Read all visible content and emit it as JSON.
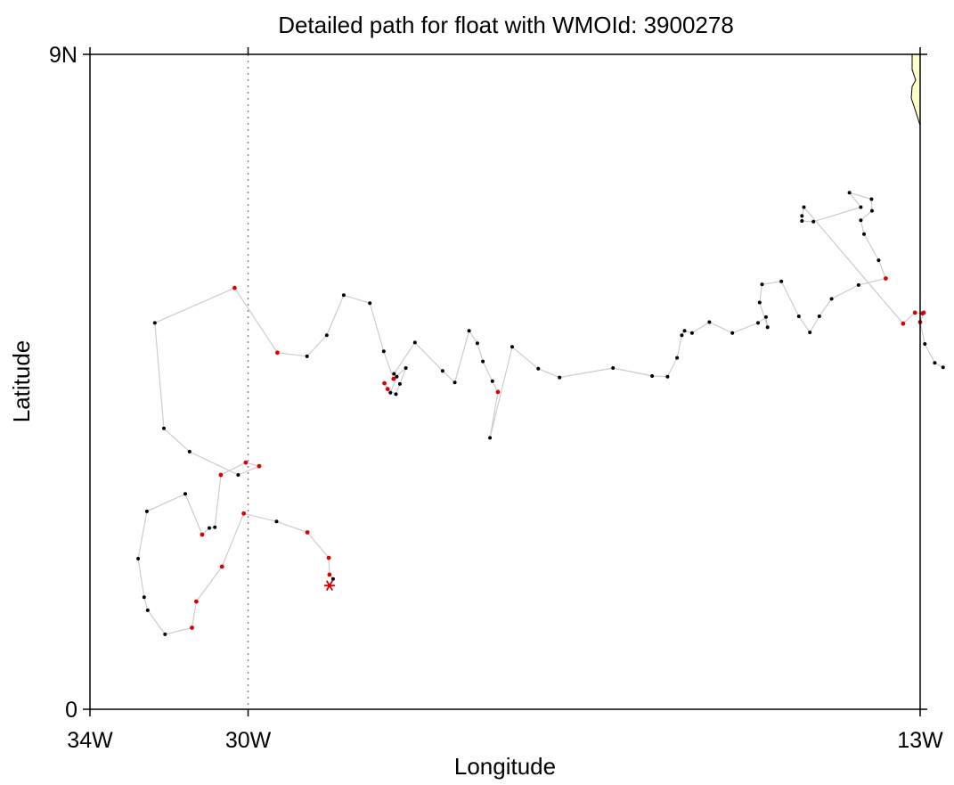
{
  "chart_data": {
    "type": "line",
    "title": "Detailed path for float with WMOId: 3900278",
    "xlabel": "Longitude",
    "ylabel": "Latitude",
    "xlim": [
      -34,
      -13
    ],
    "ylim": [
      0,
      9
    ],
    "x_ticks": [
      {
        "value": -34,
        "label": "34W"
      },
      {
        "value": -30,
        "label": "30W"
      },
      {
        "value": -13,
        "label": "13W"
      }
    ],
    "y_ticks": [
      {
        "value": 0,
        "label": "0"
      },
      {
        "value": 9,
        "label": "9N"
      }
    ],
    "reference_line": {
      "x": -30,
      "style": "dotted"
    },
    "start_marker": {
      "lon": -27.94,
      "lat": 1.7,
      "symbol": "asterisk"
    },
    "colors": {
      "track": "#cccccc",
      "point": "#000000",
      "highlight": "#dd0000",
      "land": "#ffffcc"
    },
    "series": [
      {
        "points": [
          [
            -27.94,
            1.7,
            0
          ],
          [
            -27.85,
            1.79,
            0
          ],
          [
            -27.94,
            1.85,
            1
          ],
          [
            -27.96,
            2.08,
            1
          ],
          [
            -28.5,
            2.43,
            1
          ],
          [
            -29.28,
            2.58,
            0
          ],
          [
            -30.11,
            2.69,
            1
          ],
          [
            -30.66,
            1.96,
            1
          ],
          [
            -31.31,
            1.48,
            1
          ],
          [
            -31.42,
            1.12,
            1
          ],
          [
            -32.1,
            1.03,
            0
          ],
          [
            -32.54,
            1.36,
            0
          ],
          [
            -32.63,
            1.54,
            0
          ],
          [
            -32.78,
            2.07,
            0
          ],
          [
            -32.56,
            2.72,
            0
          ],
          [
            -31.59,
            2.96,
            0
          ],
          [
            -31.16,
            2.4,
            1
          ],
          [
            -30.98,
            2.49,
            0
          ],
          [
            -30.84,
            2.5,
            0
          ],
          [
            -30.69,
            3.22,
            1
          ],
          [
            -30.06,
            3.39,
            1
          ],
          [
            -29.72,
            3.34,
            1
          ],
          [
            -30.25,
            3.22,
            0
          ],
          [
            -31.48,
            3.54,
            0
          ],
          [
            -32.13,
            3.86,
            0
          ],
          [
            -32.36,
            5.31,
            0
          ],
          [
            -30.34,
            5.79,
            1
          ],
          [
            -29.26,
            4.9,
            1
          ],
          [
            -28.51,
            4.85,
            0
          ],
          [
            -28.01,
            5.14,
            0
          ],
          [
            -27.58,
            5.69,
            0
          ],
          [
            -26.92,
            5.58,
            0
          ],
          [
            -26.57,
            4.92,
            0
          ],
          [
            -26.32,
            4.54,
            1
          ],
          [
            -26.01,
            4.69,
            0
          ],
          [
            -26.16,
            4.47,
            0
          ],
          [
            -26.26,
            4.33,
            0
          ],
          [
            -26.47,
            4.4,
            1
          ],
          [
            -26.55,
            4.48,
            1
          ],
          [
            -26.4,
            4.35,
            0
          ],
          [
            -26.24,
            4.57,
            0
          ],
          [
            -26.31,
            4.61,
            0
          ],
          [
            -25.78,
            5.04,
            0
          ],
          [
            -25.08,
            4.65,
            0
          ],
          [
            -24.77,
            4.49,
            0
          ],
          [
            -24.41,
            5.2,
            0
          ],
          [
            -24.2,
            5.03,
            0
          ],
          [
            -24.06,
            4.78,
            0
          ],
          [
            -23.82,
            4.51,
            0
          ],
          [
            -23.68,
            4.36,
            1
          ],
          [
            -23.88,
            3.73,
            0
          ],
          [
            -23.32,
            4.98,
            0
          ],
          [
            -22.66,
            4.68,
            0
          ],
          [
            -22.12,
            4.56,
            0
          ],
          [
            -20.77,
            4.69,
            0
          ],
          [
            -19.78,
            4.58,
            0
          ],
          [
            -19.39,
            4.57,
            0
          ],
          [
            -19.15,
            4.83,
            0
          ],
          [
            -19.03,
            5.14,
            0
          ],
          [
            -18.96,
            5.2,
            0
          ],
          [
            -18.77,
            5.17,
            0
          ],
          [
            -18.33,
            5.32,
            0
          ],
          [
            -17.75,
            5.17,
            0
          ],
          [
            -17.1,
            5.31,
            0
          ],
          [
            -16.9,
            5.39,
            0
          ],
          [
            -16.86,
            5.25,
            0
          ],
          [
            -17.06,
            5.59,
            0
          ],
          [
            -17.0,
            5.84,
            0
          ],
          [
            -16.51,
            5.88,
            0
          ],
          [
            -16.07,
            5.4,
            0
          ],
          [
            -15.79,
            5.18,
            0
          ],
          [
            -15.55,
            5.4,
            0
          ],
          [
            -15.24,
            5.64,
            0
          ],
          [
            -14.56,
            5.83,
            0
          ],
          [
            -13.87,
            5.92,
            1
          ],
          [
            -14.05,
            6.17,
            0
          ],
          [
            -14.42,
            6.53,
            0
          ],
          [
            -14.5,
            6.72,
            0
          ],
          [
            -14.22,
            6.85,
            0
          ],
          [
            -14.23,
            7.01,
            0
          ],
          [
            -14.79,
            7.1,
            0
          ],
          [
            -14.5,
            6.9,
            0
          ],
          [
            -15.7,
            6.7,
            0
          ],
          [
            -15.99,
            6.71,
            0
          ],
          [
            -15.99,
            6.78,
            0
          ],
          [
            -15.94,
            6.9,
            0
          ],
          [
            -13.43,
            5.3,
            1
          ],
          [
            -13.13,
            5.45,
            1
          ],
          [
            -12.94,
            5.44,
            1
          ],
          [
            -12.91,
            5.45,
            1
          ],
          [
            -13.0,
            5.32,
            1
          ],
          [
            -12.88,
            5.02,
            0
          ],
          [
            -12.63,
            4.76,
            0
          ],
          [
            -12.42,
            4.7,
            0
          ]
        ]
      }
    ],
    "coast_label": "land"
  }
}
